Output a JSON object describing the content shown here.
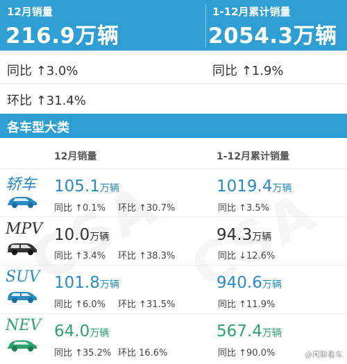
{
  "summary": {
    "month": {
      "label": "12月销量",
      "value": "216.9万辆",
      "yoy": "同比 ↑3.0%",
      "mom": "环比 ↑31.4%"
    },
    "ytd": {
      "label": "1-12月累计销量",
      "value": "2054.3万辆",
      "yoy": "同比 ↑1.9%"
    }
  },
  "section": {
    "title": "各车型大类"
  },
  "columns": {
    "month": "12月销量",
    "ytd": "1-12月累计销量"
  },
  "categories": [
    {
      "name": "轿车",
      "icon": "sedan-car-icon",
      "color": "#2a8bc4",
      "month_value": "105.1",
      "month_unit": "万辆",
      "month_yoy": "同比 ↑0.1%",
      "month_mom": "环比 ↑30.7%",
      "ytd_value": "1019.4",
      "ytd_unit": "万辆",
      "ytd_yoy": "同比 ↑3.5%"
    },
    {
      "name": "MPV",
      "icon": "mpv-car-icon",
      "color": "#333333",
      "month_value": "10.0",
      "month_unit": "万辆",
      "month_yoy": "同比 ↑3.4%",
      "month_mom": "环比 ↑38.3%",
      "ytd_value": "94.3",
      "ytd_unit": "万辆",
      "ytd_yoy": "同比 ↓12.6%"
    },
    {
      "name": "SUV",
      "icon": "suv-car-icon",
      "color": "#2a8bc4",
      "month_value": "101.8",
      "month_unit": "万辆",
      "month_yoy": "同比 ↑6.0%",
      "month_mom": "环比 ↑31.5%",
      "ytd_value": "940.6",
      "ytd_unit": "万辆",
      "ytd_yoy": "同比 ↑11.9%"
    },
    {
      "name": "NEV",
      "icon": "nev-car-icon",
      "color": "#2fa36b",
      "month_value": "64.0",
      "month_unit": "万辆",
      "month_yoy": "同比 ↑35.2%",
      "month_mom": "环比 16.6%",
      "ytd_value": "567.4",
      "ytd_unit": "万辆",
      "ytd_yoy": "同比 ↑90.0%"
    }
  ],
  "colors": {
    "banner": "#2f9fd3",
    "sedan": "#2a8bc4",
    "mpv": "#333333",
    "suv": "#2a8bc4",
    "nev": "#2fa36b"
  },
  "footer": {
    "source": "@闲聊看车"
  }
}
